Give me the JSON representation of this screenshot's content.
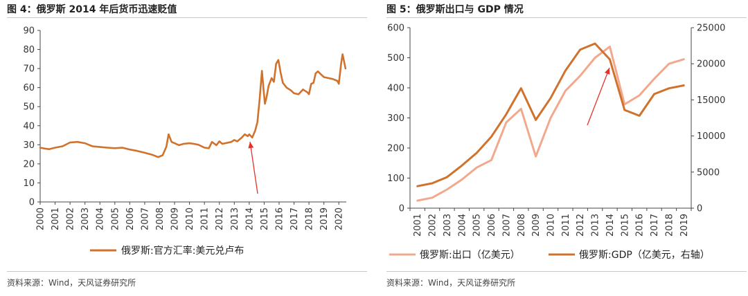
{
  "left": {
    "title": "图 4：俄罗斯 2014 年后货币迅速贬值",
    "source": "资料来源：Wind，天风证券研究所",
    "chart_data": {
      "type": "line",
      "xlabel": "",
      "ylabel": "",
      "ylim": [
        0,
        90
      ],
      "yticks": [
        0,
        10,
        20,
        30,
        40,
        50,
        60,
        70,
        80,
        90
      ],
      "xticks": [
        "2000",
        "2001",
        "2002",
        "2003",
        "2004",
        "2005",
        "2006",
        "2007",
        "2008",
        "2009",
        "2010",
        "2011",
        "2012",
        "2013",
        "2014",
        "2015",
        "2016",
        "2017",
        "2018",
        "2019",
        "2020"
      ],
      "legend_position": "bottom",
      "series": [
        {
          "name": "俄罗斯:官方汇率:美元兑卢布",
          "color": "#D0712C",
          "x": [
            2000,
            2000.3,
            2000.6,
            2001,
            2001.5,
            2002,
            2002.5,
            2003,
            2003.5,
            2004,
            2004.5,
            2005,
            2005.5,
            2006,
            2006.5,
            2007,
            2007.5,
            2007.9,
            2008.2,
            2008.45,
            2008.6,
            2008.8,
            2009,
            2009.3,
            2009.6,
            2010,
            2010.3,
            2010.6,
            2011,
            2011.3,
            2011.5,
            2011.8,
            2012,
            2012.2,
            2012.5,
            2012.8,
            2013,
            2013.2,
            2013.5,
            2013.7,
            2013.9,
            2014,
            2014.2,
            2014.4,
            2014.55,
            2014.7,
            2014.85,
            2014.95,
            2015.05,
            2015.15,
            2015.3,
            2015.5,
            2015.65,
            2015.8,
            2015.95,
            2016.1,
            2016.25,
            2016.5,
            2016.8,
            2017,
            2017.3,
            2017.6,
            2017.9,
            2018,
            2018.15,
            2018.3,
            2018.45,
            2018.6,
            2018.8,
            2019,
            2019.3,
            2019.6,
            2019.9,
            2020,
            2020.15,
            2020.25,
            2020.45
          ],
          "y": [
            28.5,
            28,
            27.7,
            28.5,
            29.2,
            31.2,
            31.5,
            30.8,
            29.2,
            28.8,
            28.5,
            28.2,
            28.5,
            27.5,
            26.8,
            25.8,
            24.8,
            23.5,
            24.5,
            29,
            35.5,
            31.5,
            30.8,
            29.8,
            30.5,
            30.8,
            30.5,
            30,
            28.5,
            28.2,
            31.5,
            29.8,
            31.8,
            30.5,
            31,
            31.5,
            32.5,
            31.8,
            33.8,
            35.5,
            34.5,
            35.5,
            33.8,
            37.5,
            42,
            54,
            68.8,
            60,
            51.5,
            54.5,
            61,
            65,
            63,
            72.5,
            74.5,
            68,
            62.5,
            60,
            58.5,
            57,
            56.5,
            59,
            57.5,
            56.5,
            62,
            62.5,
            67.5,
            68.5,
            67,
            65.5,
            65,
            64.5,
            63.5,
            62,
            72.5,
            77.5,
            70
          ]
        }
      ]
    }
  },
  "right": {
    "title": "图 5：俄罗斯出口与 GDP 情况",
    "source": "资料来源：Wind，天风证券研究所",
    "chart_data": {
      "type": "line",
      "xlabel": "",
      "ylabel": "",
      "ylim": [
        0,
        600
      ],
      "ylim_right": [
        0,
        25000
      ],
      "yticks": [
        0,
        100,
        200,
        300,
        400,
        500,
        600
      ],
      "yticks_right": [
        0,
        5000,
        10000,
        15000,
        20000,
        25000
      ],
      "categories": [
        "2001",
        "2002",
        "2003",
        "2004",
        "2005",
        "2006",
        "2007",
        "2008",
        "2009",
        "2010",
        "2011",
        "2012",
        "2013",
        "2014",
        "2015",
        "2016",
        "2017",
        "2018",
        "2019"
      ],
      "legend_position": "bottom",
      "series": [
        {
          "name": "俄罗斯:出口（亿美元）",
          "axis": "left",
          "color": "#F2A88C",
          "values": [
            25,
            35,
            62,
            95,
            135,
            160,
            285,
            330,
            172,
            300,
            390,
            440,
            500,
            537,
            345,
            375,
            430,
            480,
            495
          ]
        },
        {
          "name": "俄罗斯:GDP（亿美元，右轴）",
          "axis": "right",
          "color": "#D0712C",
          "values": [
            3050,
            3450,
            4300,
            5900,
            7650,
            9900,
            12995,
            16608,
            12227,
            15249,
            19050,
            21950,
            22800,
            20600,
            13600,
            12800,
            15800,
            16600,
            17000
          ]
        }
      ]
    }
  }
}
